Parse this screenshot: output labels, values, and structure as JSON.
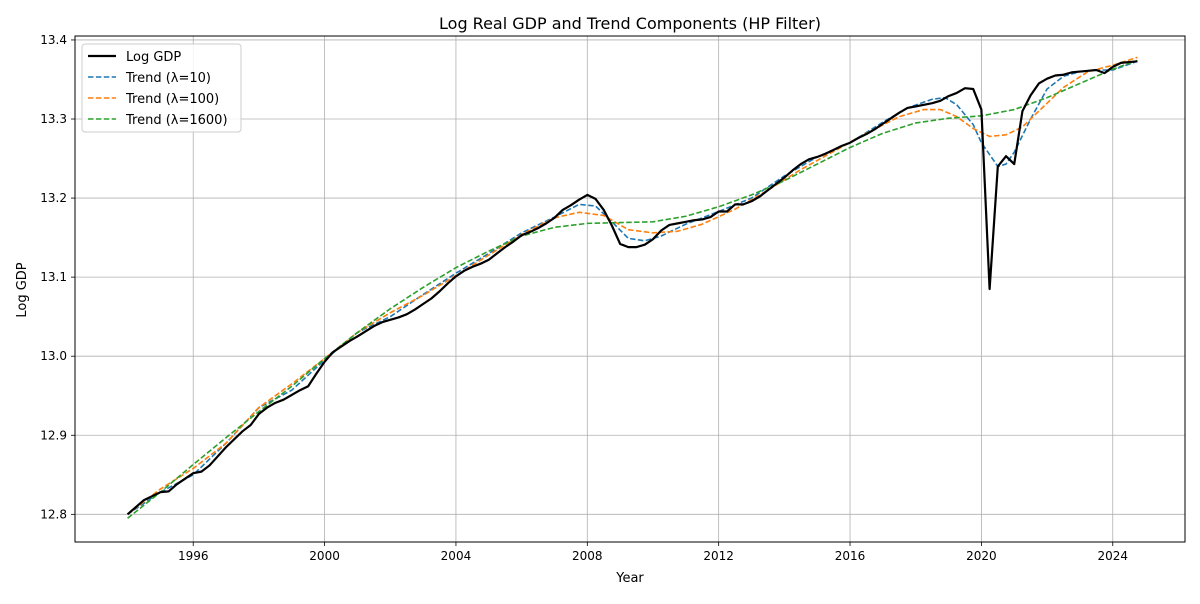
{
  "chart_data": {
    "type": "line",
    "title": "Log Real GDP and Trend Components (HP Filter)",
    "xlabel": "Year",
    "ylabel": "Log GDP",
    "xlim": [
      1992.4,
      2026.2
    ],
    "ylim": [
      12.765,
      13.405
    ],
    "xticks": [
      1996,
      2000,
      2004,
      2008,
      2012,
      2016,
      2020,
      2024
    ],
    "yticks": [
      12.8,
      12.9,
      13.0,
      13.1,
      13.2,
      13.3,
      13.4
    ],
    "xtick_labels": [
      "1996",
      "2000",
      "2004",
      "2008",
      "2012",
      "2016",
      "2020",
      "2024"
    ],
    "ytick_labels": [
      "12.8",
      "12.9",
      "13.0",
      "13.1",
      "13.2",
      "13.3",
      "13.4"
    ],
    "grid": true,
    "legend_position": "top-left",
    "series": [
      {
        "name": "Log GDP",
        "color": "#000000",
        "style": "solid",
        "x": [
          1994.0,
          1994.5,
          1995.0,
          1995.25,
          1995.5,
          1996.0,
          1996.25,
          1996.5,
          1997.0,
          1997.5,
          1997.75,
          1998.0,
          1998.25,
          1998.5,
          1998.75,
          1999.0,
          1999.25,
          1999.5,
          1999.75,
          2000.0,
          2000.25,
          2000.5,
          2000.75,
          2001.0,
          2001.5,
          2001.75,
          2002.0,
          2002.25,
          2002.5,
          2002.75,
          2003.0,
          2003.25,
          2003.5,
          2003.75,
          2004.0,
          2004.25,
          2004.5,
          2004.75,
          2005.0,
          2005.25,
          2005.5,
          2005.75,
          2006.0,
          2006.25,
          2006.5,
          2006.75,
          2007.0,
          2007.25,
          2007.5,
          2007.75,
          2008.0,
          2008.25,
          2008.5,
          2008.75,
          2009.0,
          2009.25,
          2009.5,
          2009.75,
          2010.0,
          2010.25,
          2010.5,
          2010.75,
          2011.0,
          2011.25,
          2011.5,
          2011.75,
          2012.0,
          2012.25,
          2012.5,
          2012.75,
          2013.0,
          2013.25,
          2013.5,
          2013.75,
          2014.0,
          2014.25,
          2014.5,
          2014.75,
          2015.0,
          2015.25,
          2015.5,
          2015.75,
          2016.0,
          2016.25,
          2016.5,
          2016.75,
          2017.0,
          2017.25,
          2017.5,
          2017.75,
          2018.0,
          2018.25,
          2018.5,
          2018.75,
          2019.0,
          2019.25,
          2019.5,
          2019.75,
          2020.0,
          2020.25,
          2020.5,
          2020.75,
          2021.0,
          2021.25,
          2021.5,
          2021.75,
          2022.0,
          2022.25,
          2022.5,
          2022.75,
          2023.0,
          2023.25,
          2023.5,
          2023.75,
          2024.0,
          2024.25,
          2024.5,
          2024.75
        ],
        "y": [
          12.8,
          12.818,
          12.828,
          12.829,
          12.838,
          12.852,
          12.854,
          12.862,
          12.885,
          12.905,
          12.913,
          12.927,
          12.935,
          12.941,
          12.945,
          12.951,
          12.957,
          12.962,
          12.978,
          12.993,
          13.005,
          13.012,
          13.019,
          13.025,
          13.038,
          13.043,
          13.046,
          13.049,
          13.053,
          13.059,
          13.066,
          13.073,
          13.082,
          13.092,
          13.101,
          13.108,
          13.113,
          13.117,
          13.122,
          13.13,
          13.138,
          13.145,
          13.153,
          13.157,
          13.162,
          13.168,
          13.175,
          13.185,
          13.191,
          13.198,
          13.204,
          13.199,
          13.185,
          13.165,
          13.142,
          13.138,
          13.138,
          13.141,
          13.148,
          13.159,
          13.166,
          13.168,
          13.17,
          13.172,
          13.173,
          13.176,
          13.183,
          13.183,
          13.192,
          13.192,
          13.196,
          13.202,
          13.21,
          13.218,
          13.226,
          13.235,
          13.243,
          13.249,
          13.252,
          13.256,
          13.261,
          13.266,
          13.27,
          13.276,
          13.281,
          13.287,
          13.294,
          13.301,
          13.308,
          13.314,
          13.316,
          13.318,
          13.32,
          13.323,
          13.329,
          13.333,
          13.339,
          13.338,
          13.312,
          13.085,
          13.24,
          13.253,
          13.243,
          13.31,
          13.33,
          13.345,
          13.351,
          13.355,
          13.356,
          13.359,
          13.36,
          13.361,
          13.362,
          13.358,
          13.366,
          13.371,
          13.372,
          13.373
        ]
      },
      {
        "name": "Trend (λ=10)",
        "color": "#1f77b4",
        "style": "dashed",
        "x": [
          1994.0,
          1995.0,
          1996.0,
          1997.0,
          1998.0,
          1999.0,
          2000.0,
          2001.0,
          2002.0,
          2003.0,
          2004.0,
          2005.0,
          2006.0,
          2007.0,
          2007.75,
          2008.25,
          2008.75,
          2009.25,
          2009.75,
          2010.25,
          2011.0,
          2012.0,
          2013.0,
          2014.0,
          2015.0,
          2016.0,
          2017.0,
          2017.75,
          2018.5,
          2018.9,
          2019.25,
          2019.75,
          2020.0,
          2020.5,
          2020.75,
          2021.0,
          2021.5,
          2022.0,
          2022.5,
          2023.0,
          2023.5,
          2024.0,
          2024.75
        ],
        "y": [
          12.8,
          12.828,
          12.85,
          12.89,
          12.935,
          12.957,
          12.995,
          13.03,
          13.05,
          13.078,
          13.105,
          13.13,
          13.156,
          13.176,
          13.192,
          13.19,
          13.17,
          13.149,
          13.146,
          13.152,
          13.167,
          13.183,
          13.2,
          13.228,
          13.252,
          13.27,
          13.296,
          13.314,
          13.325,
          13.327,
          13.318,
          13.293,
          13.27,
          13.24,
          13.243,
          13.258,
          13.3,
          13.338,
          13.354,
          13.36,
          13.362,
          13.362,
          13.373
        ]
      },
      {
        "name": "Trend (λ=100)",
        "color": "#ff7f0e",
        "style": "dashed",
        "x": [
          1994.0,
          1995.0,
          1996.0,
          1997.0,
          1998.0,
          1999.0,
          2000.0,
          2001.0,
          2002.0,
          2003.0,
          2004.0,
          2005.0,
          2006.0,
          2007.0,
          2007.75,
          2008.5,
          2009.25,
          2010.0,
          2010.75,
          2011.5,
          2012.5,
          2013.5,
          2014.5,
          2015.5,
          2016.5,
          2017.5,
          2018.25,
          2018.75,
          2019.25,
          2019.75,
          2020.25,
          2020.75,
          2021.25,
          2021.75,
          2022.5,
          2023.25,
          2024.0,
          2024.75
        ],
        "y": [
          12.8,
          12.832,
          12.858,
          12.89,
          12.935,
          12.965,
          12.997,
          13.03,
          13.055,
          13.077,
          13.102,
          13.128,
          13.154,
          13.175,
          13.182,
          13.178,
          13.16,
          13.156,
          13.158,
          13.167,
          13.186,
          13.21,
          13.236,
          13.259,
          13.282,
          13.303,
          13.312,
          13.312,
          13.303,
          13.288,
          13.278,
          13.28,
          13.29,
          13.31,
          13.34,
          13.36,
          13.368,
          13.378
        ]
      },
      {
        "name": "Trend (λ=1600)",
        "color": "#2ca02c",
        "style": "dashed",
        "x": [
          1994.0,
          1995.0,
          1996.0,
          1997.0,
          1998.0,
          1999.0,
          2000.0,
          2001.0,
          2002.0,
          2003.0,
          2004.0,
          2005.0,
          2006.0,
          2007.0,
          2008.0,
          2009.0,
          2010.0,
          2011.0,
          2012.0,
          2013.0,
          2014.0,
          2015.0,
          2016.0,
          2017.0,
          2018.0,
          2019.0,
          2020.0,
          2021.0,
          2022.0,
          2023.0,
          2024.0,
          2024.75
        ],
        "y": [
          12.795,
          12.828,
          12.863,
          12.897,
          12.93,
          12.962,
          12.997,
          13.03,
          13.06,
          13.087,
          13.112,
          13.133,
          13.152,
          13.163,
          13.168,
          13.169,
          13.17,
          13.177,
          13.189,
          13.204,
          13.222,
          13.243,
          13.264,
          13.282,
          13.295,
          13.301,
          13.304,
          13.312,
          13.327,
          13.345,
          13.363,
          13.374
        ]
      }
    ]
  }
}
